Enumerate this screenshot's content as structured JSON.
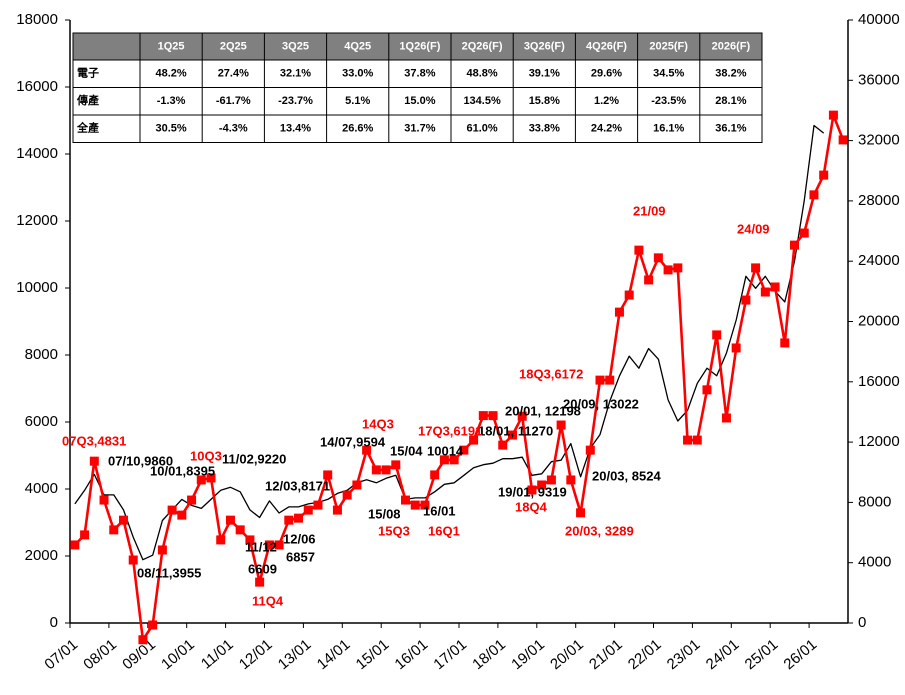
{
  "chart_data": {
    "type": "line",
    "xlim": [
      2007,
      2027
    ],
    "xticks": [
      {
        "value": 2007,
        "label": "07/01"
      },
      {
        "value": 2008,
        "label": "08/01"
      },
      {
        "value": 2009,
        "label": "09/01"
      },
      {
        "value": 2010,
        "label": "10/01"
      },
      {
        "value": 2011,
        "label": "11/01"
      },
      {
        "value": 2012,
        "label": "12/01"
      },
      {
        "value": 2013,
        "label": "13/01"
      },
      {
        "value": 2014,
        "label": "14/01"
      },
      {
        "value": 2015,
        "label": "15/01"
      },
      {
        "value": 2016,
        "label": "16/01"
      },
      {
        "value": 2017,
        "label": "17/01"
      },
      {
        "value": 2018,
        "label": "18/01"
      },
      {
        "value": 2019,
        "label": "19/01"
      },
      {
        "value": 2020,
        "label": "20/01"
      },
      {
        "value": 2021,
        "label": "21/01"
      },
      {
        "value": 2022,
        "label": "22/01"
      },
      {
        "value": 2023,
        "label": "23/01"
      },
      {
        "value": 2024,
        "label": "24/01"
      },
      {
        "value": 2025,
        "label": "25/01"
      },
      {
        "value": 2026,
        "label": "26/01"
      }
    ],
    "ylim": [
      0,
      18000
    ],
    "yticks": [
      0,
      2000,
      4000,
      6000,
      8000,
      10000,
      12000,
      14000,
      16000,
      18000
    ],
    "y2lim": [
      0,
      40000
    ],
    "y2ticks": [
      0,
      4000,
      8000,
      12000,
      16000,
      20000,
      24000,
      28000,
      32000,
      36000,
      40000
    ],
    "series": [
      {
        "color": "#000000",
        "axis": "y2",
        "x": [
          2007.125,
          2007.375,
          2007.625,
          2007.875,
          2008.125,
          2008.375,
          2008.625,
          2008.875,
          2009.125,
          2009.375,
          2009.625,
          2009.875,
          2010.125,
          2010.375,
          2010.625,
          2010.875,
          2011.125,
          2011.375,
          2011.625,
          2011.875,
          2012.125,
          2012.375,
          2012.625,
          2012.875,
          2013.125,
          2013.375,
          2013.625,
          2013.875,
          2014.125,
          2014.375,
          2014.625,
          2014.875,
          2015.125,
          2015.375,
          2015.625,
          2015.875,
          2016.125,
          2016.375,
          2016.625,
          2016.875,
          2017.125,
          2017.375,
          2017.625,
          2017.875,
          2018.125,
          2018.375,
          2018.625,
          2018.875,
          2019.125,
          2019.375,
          2019.625,
          2019.875,
          2020.125,
          2020.375,
          2020.625,
          2020.875,
          2021.125,
          2021.375,
          2021.625,
          2021.875,
          2022.125,
          2022.375,
          2022.625,
          2022.875,
          2023.125,
          2023.375,
          2023.625,
          2023.875,
          2024.125,
          2024.375,
          2024.625,
          2024.875,
          2025.125,
          2025.375,
          2025.625,
          2025.875,
          2026.125,
          2026.375
        ],
        "values": [
          7900,
          8800,
          9860,
          8500,
          8500,
          7500,
          5700,
          4200,
          4500,
          6800,
          7500,
          8200,
          7800,
          7600,
          8200,
          8800,
          9000,
          8700,
          7500,
          7000,
          8100,
          7300,
          7700,
          7700,
          7900,
          8000,
          8200,
          8600,
          8800,
          9300,
          9500,
          9300,
          9600,
          9800,
          8200,
          8300,
          8300,
          8700,
          9200,
          9300,
          9800,
          10300,
          10500,
          10600,
          10900,
          10900,
          11000,
          9800,
          9900,
          10700,
          10800,
          11900,
          9700,
          11600,
          12500,
          14700,
          16400,
          17700,
          16900,
          18200,
          17500,
          14800,
          13400,
          14100,
          15900,
          16900,
          16400,
          17900,
          20100,
          23000,
          22200,
          23000,
          22000,
          21300,
          24000,
          28000,
          33000,
          32500
        ]
      },
      {
        "color": "#ff0000",
        "marker": "square",
        "x": [
          2007.125,
          2007.375,
          2007.625,
          2007.875,
          2008.125,
          2008.375,
          2008.625,
          2008.875,
          2009.125,
          2009.375,
          2009.625,
          2009.875,
          2010.125,
          2010.375,
          2010.625,
          2010.875,
          2011.125,
          2011.375,
          2011.625,
          2011.875,
          2012.125,
          2012.375,
          2012.625,
          2012.875,
          2013.125,
          2013.375,
          2013.625,
          2013.875,
          2014.125,
          2014.375,
          2014.625,
          2014.875,
          2015.125,
          2015.375,
          2015.625,
          2015.875,
          2016.125,
          2016.375,
          2016.625,
          2016.875,
          2017.125,
          2017.375,
          2017.625,
          2017.875,
          2018.125,
          2018.375,
          2018.625,
          2018.875,
          2019.125,
          2019.375,
          2019.625,
          2019.875,
          2020.125,
          2020.375,
          2020.625,
          2020.875,
          2021.125,
          2021.375,
          2021.625,
          2021.875,
          2022.125,
          2022.375,
          2022.625,
          2022.875,
          2023.125,
          2023.375,
          2023.625,
          2023.875,
          2024.125,
          2024.375,
          2024.625,
          2024.875,
          2025.125,
          2025.375,
          2025.625,
          2025.875,
          2026.125,
          2026.375,
          2026.625,
          2026.875
        ],
        "values": [
          2330,
          2630,
          4831,
          3670,
          2780,
          3070,
          1880,
          -500,
          -60,
          2180,
          3370,
          3220,
          3670,
          4270,
          4330,
          2480,
          3070,
          2780,
          2480,
          1220,
          2330,
          2330,
          3070,
          3130,
          3370,
          3520,
          4420,
          3370,
          3820,
          4120,
          5160,
          4570,
          4570,
          4720,
          3670,
          3520,
          3520,
          4420,
          4870,
          4870,
          5160,
          5460,
          6191,
          6190,
          5310,
          5610,
          6172,
          3970,
          4120,
          4270,
          5910,
          4270,
          3289,
          5160,
          7250,
          7250,
          9280,
          9790,
          11130,
          10240,
          10900,
          10540,
          10600,
          5460,
          5460,
          6960,
          8600,
          6120,
          8210,
          9640,
          10600,
          9880,
          10030,
          8360,
          11280,
          11640,
          12780,
          13370,
          15160,
          14420
        ]
      }
    ],
    "annotations": [
      {
        "text": "07/10,9860",
        "color": "#000000"
      },
      {
        "text": "10/01,8395",
        "color": "#000000"
      },
      {
        "text": "11/02,9220",
        "color": "#000000"
      },
      {
        "text": "11/12",
        "color": "#000000"
      },
      {
        "text": "6609",
        "color": "#000000"
      },
      {
        "text": "12/03,8171",
        "color": "#000000"
      },
      {
        "text": "12/06",
        "color": "#000000"
      },
      {
        "text": "6857",
        "color": "#000000"
      },
      {
        "text": "08/11,3955",
        "color": "#000000"
      },
      {
        "text": "14/07,9594",
        "color": "#000000"
      },
      {
        "text": "15/04",
        "color": "#000000"
      },
      {
        "text": "10014",
        "color": "#000000"
      },
      {
        "text": "15/08",
        "color": "#000000"
      },
      {
        "text": "16/01",
        "color": "#000000"
      },
      {
        "text": "18/01, 11270",
        "color": "#000000"
      },
      {
        "text": "20/01, 12198",
        "color": "#000000"
      },
      {
        "text": "20/09, 13022",
        "color": "#000000"
      },
      {
        "text": "19/01, 9319",
        "color": "#000000"
      },
      {
        "text": "20/03, 8524",
        "color": "#000000"
      },
      {
        "text": "07Q3,4831",
        "color": "#ff0000"
      },
      {
        "text": "10Q3",
        "color": "#ff0000"
      },
      {
        "text": "11Q4",
        "color": "#ff0000"
      },
      {
        "text": "14Q3",
        "color": "#ff0000"
      },
      {
        "text": "15Q3",
        "color": "#ff0000"
      },
      {
        "text": "16Q1",
        "color": "#ff0000"
      },
      {
        "text": "17Q3,6191",
        "color": "#ff0000"
      },
      {
        "text": "18Q3,6172",
        "color": "#ff0000"
      },
      {
        "text": "18Q4",
        "color": "#ff0000"
      },
      {
        "text": "20/03, 3289",
        "color": "#ff0000"
      },
      {
        "text": "21/09",
        "color": "#ff0000"
      },
      {
        "text": "24/09",
        "color": "#ff0000"
      }
    ],
    "table": {
      "columns": [
        "1Q25",
        "2Q25",
        "3Q25",
        "4Q25",
        "1Q26(F)",
        "2Q26(F)",
        "3Q26(F)",
        "4Q26(F)",
        "2025(F)",
        "2026(F)"
      ],
      "rows": [
        {
          "label": "電子",
          "values": [
            "48.2%",
            "27.4%",
            "32.1%",
            "33.0%",
            "37.8%",
            "48.8%",
            "39.1%",
            "29.6%",
            "34.5%",
            "38.2%"
          ]
        },
        {
          "label": "傳產",
          "values": [
            "-1.3%",
            "-61.7%",
            "-23.7%",
            "5.1%",
            "15.0%",
            "134.5%",
            "15.8%",
            "1.2%",
            "-23.5%",
            "28.1%"
          ]
        },
        {
          "label": "全產",
          "values": [
            "30.5%",
            "-4.3%",
            "13.4%",
            "26.6%",
            "31.7%",
            "61.0%",
            "33.8%",
            "24.2%",
            "16.1%",
            "36.1%"
          ]
        }
      ]
    }
  }
}
